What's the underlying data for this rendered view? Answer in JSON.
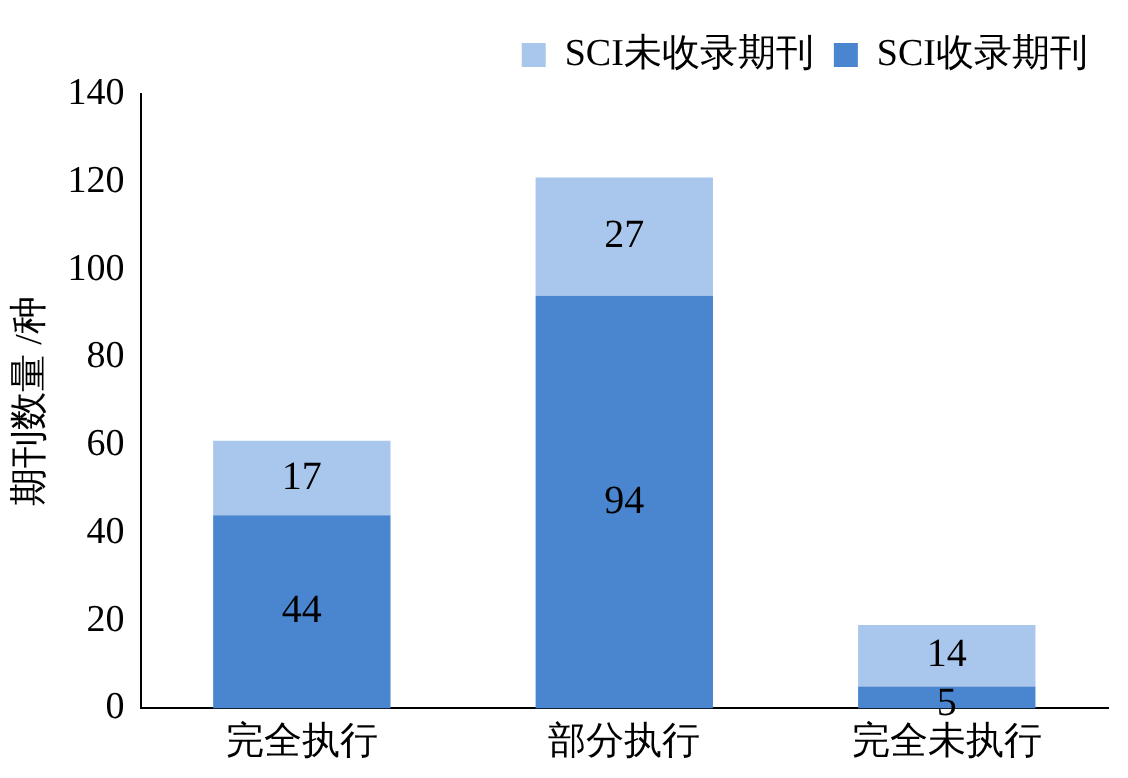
{
  "chart_data": {
    "type": "bar",
    "stacked": true,
    "ylabel": "期刊数量 /种",
    "categories": [
      "完全执行",
      "部分执行",
      "完全未执行"
    ],
    "series": [
      {
        "name": "SCI收录期刊",
        "color": "#4a86d0",
        "values": [
          44,
          94,
          5
        ]
      },
      {
        "name": "SCI未收录期刊",
        "color": "#a9c6ec",
        "values": [
          17,
          27,
          14
        ]
      }
    ],
    "ylim": [
      0,
      140
    ],
    "yticks": [
      0,
      20,
      40,
      60,
      80,
      100,
      120,
      140
    ],
    "data_labels": true,
    "legend": "top right",
    "grid": false
  }
}
